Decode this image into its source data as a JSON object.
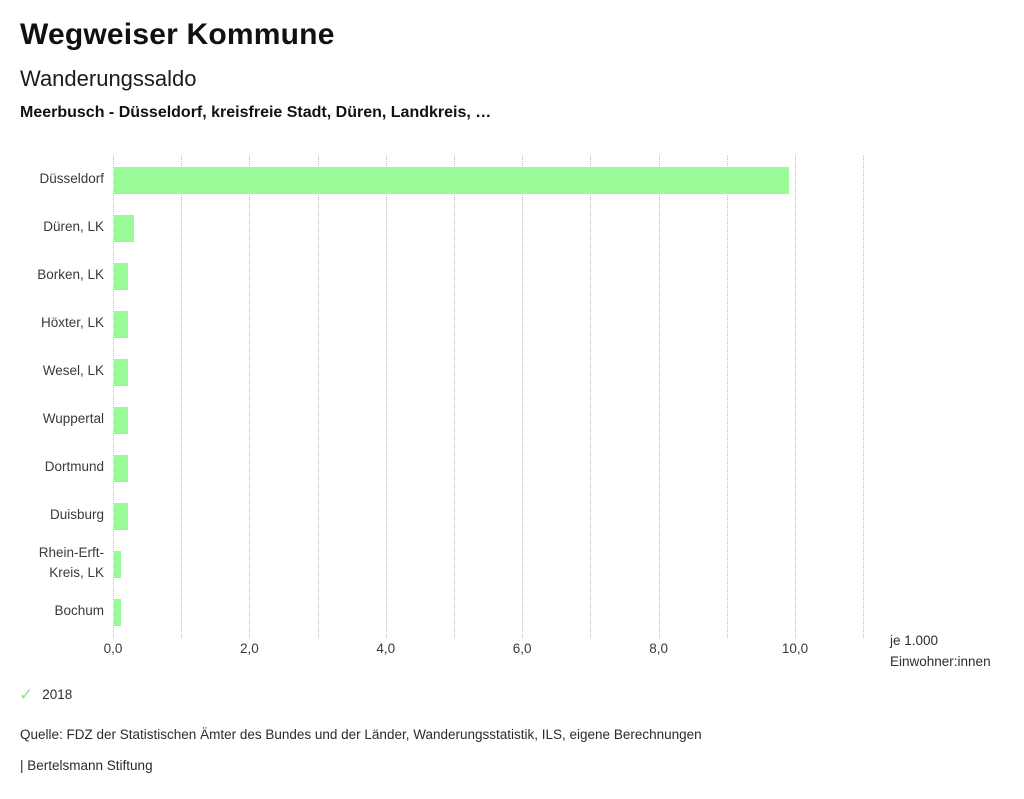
{
  "header": {
    "app_title": "Wegweiser Kommune",
    "chart_title": "Wanderungssaldo",
    "chart_subtitle": "Meerbusch - Düsseldorf, kreisfreie Stadt, Düren, Landkreis, …"
  },
  "chart_data": {
    "type": "bar",
    "orientation": "horizontal",
    "title": "Wanderungssaldo",
    "categories": [
      "Düsseldorf",
      "Düren, LK",
      "Borken, LK",
      "Höxter, LK",
      "Wesel, LK",
      "Wuppertal",
      "Dortmund",
      "Duisburg",
      "Rhein-Erft-Kreis, LK",
      "Bochum"
    ],
    "series": [
      {
        "name": "2018",
        "values": [
          9.9,
          0.3,
          0.2,
          0.2,
          0.2,
          0.2,
          0.2,
          0.2,
          0.1,
          0.1
        ]
      }
    ],
    "xlabel": "je 1.000 Einwohner:innen",
    "ylabel": "",
    "xlim": [
      0,
      11
    ],
    "grid": "vertical dotted gridlines every 1.0",
    "xticks": [
      0,
      2,
      4,
      6,
      8,
      10
    ],
    "xtick_labels": [
      "0,0",
      "2,0",
      "4,0",
      "6,0",
      "8,0",
      "10,0"
    ],
    "legend_position": "bottom-left",
    "bar_color": "#98fb98"
  },
  "axis_unit": {
    "line1": "je 1.000",
    "line2": "Einwohner:innen"
  },
  "legend": {
    "check_icon": "checkmark",
    "check_glyph": "✓",
    "year": "2018",
    "check_color": "#8fe58f"
  },
  "footer": {
    "source": "Quelle: FDZ der Statistischen Ämter des Bundes und der Länder, Wanderungsstatistik, ILS, eigene Berechnungen",
    "attribution": "| Bertelsmann Stiftung"
  },
  "colors": {
    "bar": "#98fb98",
    "grid": "#bdbdbd",
    "text": "#2e2e2e"
  }
}
